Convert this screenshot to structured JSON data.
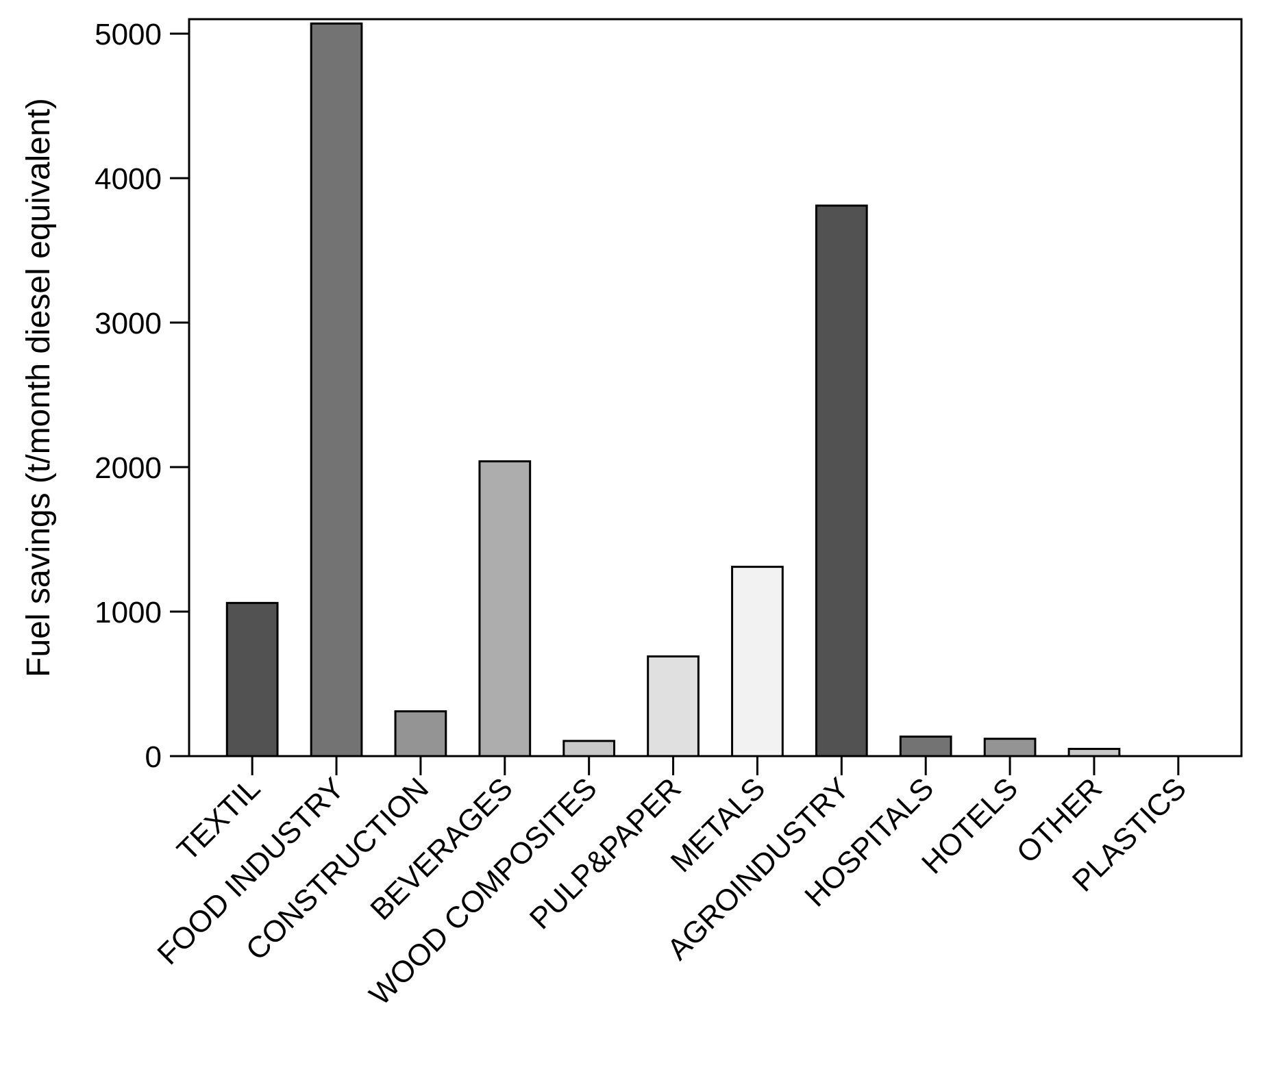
{
  "chart_data": {
    "type": "bar",
    "ylabel": "Fuel savings (t/month diesel equivalent)",
    "xlabel": "",
    "ylim": [
      0,
      5100
    ],
    "yticks": [
      0,
      1000,
      2000,
      3000,
      4000,
      5000
    ],
    "grid": false,
    "categories": [
      "TEXTIL",
      "FOOD INDUSTRY",
      "CONSTRUCTION",
      "BEVERAGES",
      "WOOD COMPOSITES",
      "PULP&PAPER",
      "METALS",
      "AGROINDUSTRY",
      "HOSPITALS",
      "HOTELS",
      "OTHER",
      "PLASTICS"
    ],
    "values": [
      1060,
      5070,
      310,
      2040,
      105,
      690,
      1310,
      3810,
      135,
      120,
      50,
      0
    ],
    "colors": [
      "#525252",
      "#737373",
      "#949494",
      "#adadad",
      "#c8c8c8",
      "#e0e0e0",
      "#f2f2f2",
      "#525252",
      "#737373",
      "#949494",
      "#c8c8c8",
      "#e0e0e0"
    ]
  }
}
